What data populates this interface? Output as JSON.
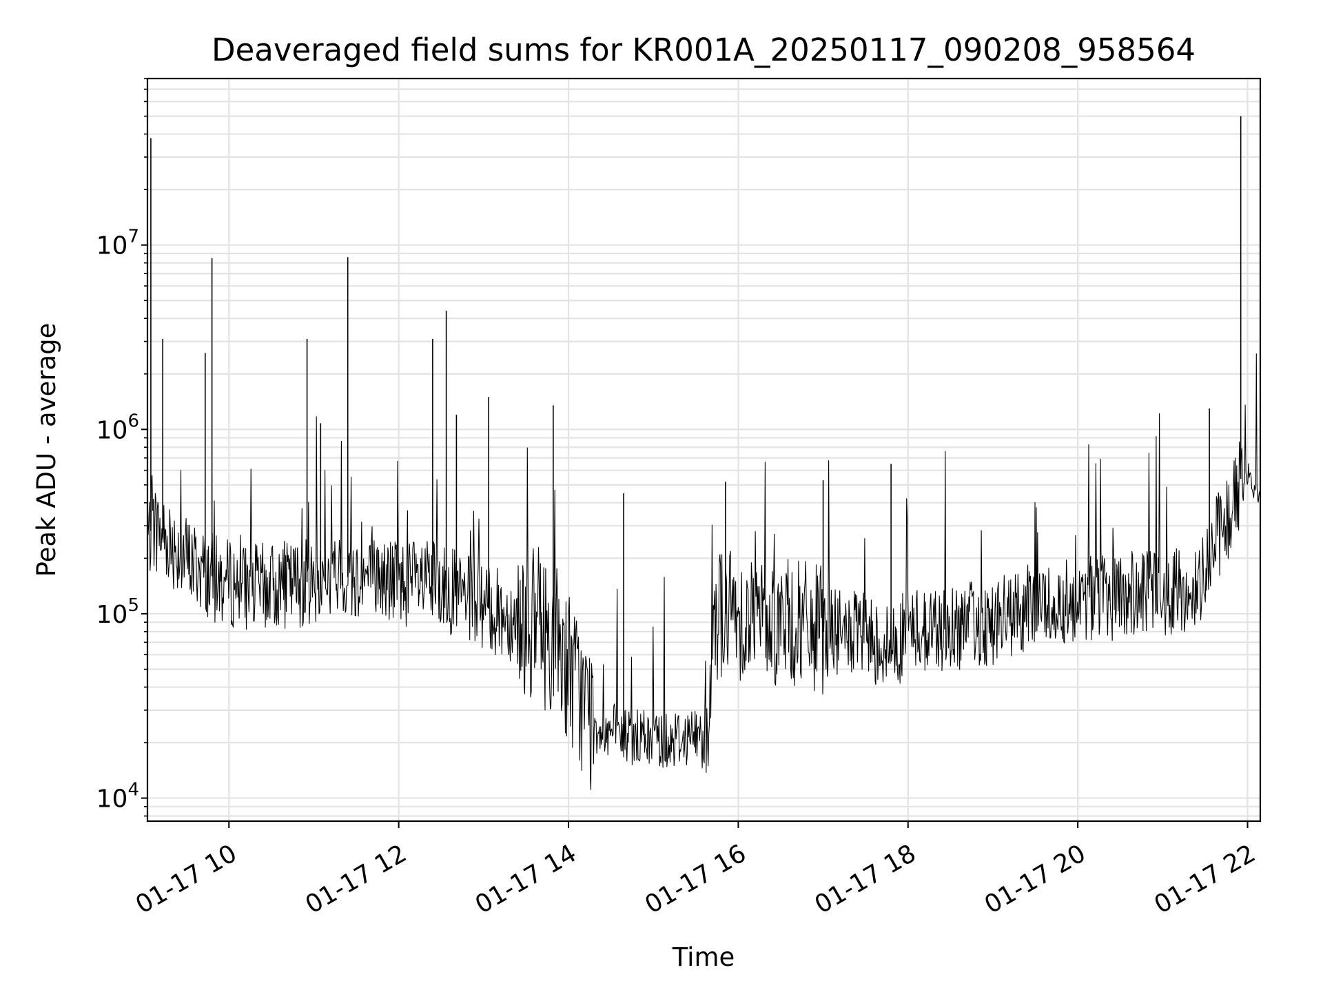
{
  "chart_data": {
    "type": "line",
    "title": "Deaveraged field sums for KR001A_20250117_090208_958564",
    "xlabel": "Time",
    "ylabel": "Peak ADU - average",
    "x_tick_labels": [
      "01-17 10",
      "01-17 12",
      "01-17 14",
      "01-17 16",
      "01-17 18",
      "01-17 20",
      "01-17 22"
    ],
    "x_tick_hours": [
      10,
      12,
      14,
      16,
      18,
      20,
      22
    ],
    "y_tick_labels": [
      {
        "base": "10",
        "exp": "4"
      },
      {
        "base": "10",
        "exp": "5"
      },
      {
        "base": "10",
        "exp": "6"
      },
      {
        "base": "10",
        "exp": "7"
      }
    ],
    "y_tick_values": [
      10000,
      100000,
      1000000,
      10000000
    ],
    "xlim_hours": [
      9.04,
      22.15
    ],
    "ylim": [
      7500,
      80000000
    ],
    "yscale": "log",
    "grid": true,
    "series_color": "#000000",
    "series": [
      {
        "x_hours": [
          9.04,
          9.1,
          9.3,
          9.5,
          9.7,
          9.9,
          10.2,
          10.5,
          11.0,
          11.5,
          12.0,
          12.5,
          12.8,
          13.2,
          13.5,
          13.7,
          13.9,
          14.1,
          14.3,
          14.6,
          14.9,
          15.2,
          15.5,
          15.65,
          15.7,
          16.0,
          16.5,
          17.0,
          17.5,
          17.8,
          18.0,
          18.5,
          19.0,
          19.5,
          20.0,
          20.5,
          21.0,
          21.4,
          21.5,
          21.8,
          21.95,
          22.15
        ],
        "y": [
          250000,
          300000,
          250000,
          200000,
          170000,
          150000,
          140000,
          140000,
          150000,
          160000,
          150000,
          140000,
          120000,
          100000,
          90000,
          80000,
          70000,
          40000,
          25000,
          22000,
          21000,
          21000,
          22000,
          20000,
          100000,
          100000,
          90000,
          80000,
          75000,
          65000,
          80000,
          85000,
          90000,
          110000,
          120000,
          125000,
          130000,
          130000,
          200000,
          350000,
          600000,
          450000
        ]
      }
    ],
    "spikes": [
      {
        "x_hours": 9.08,
        "y": 38000000
      },
      {
        "x_hours": 9.22,
        "y": 3100000
      },
      {
        "x_hours": 9.72,
        "y": 2600000
      },
      {
        "x_hours": 9.8,
        "y": 8500000
      },
      {
        "x_hours": 10.92,
        "y": 3100000
      },
      {
        "x_hours": 11.08,
        "y": 1080000
      },
      {
        "x_hours": 11.4,
        "y": 8600000
      },
      {
        "x_hours": 12.4,
        "y": 3100000
      },
      {
        "x_hours": 12.56,
        "y": 4400000
      },
      {
        "x_hours": 12.68,
        "y": 1200000
      },
      {
        "x_hours": 13.06,
        "y": 1500000
      },
      {
        "x_hours": 13.82,
        "y": 1350000
      },
      {
        "x_hours": 14.65,
        "y": 450000
      },
      {
        "x_hours": 15.85,
        "y": 520000
      },
      {
        "x_hours": 17.0,
        "y": 530000
      },
      {
        "x_hours": 17.8,
        "y": 650000
      },
      {
        "x_hours": 21.55,
        "y": 1300000
      },
      {
        "x_hours": 21.92,
        "y": 50000000
      }
    ]
  }
}
